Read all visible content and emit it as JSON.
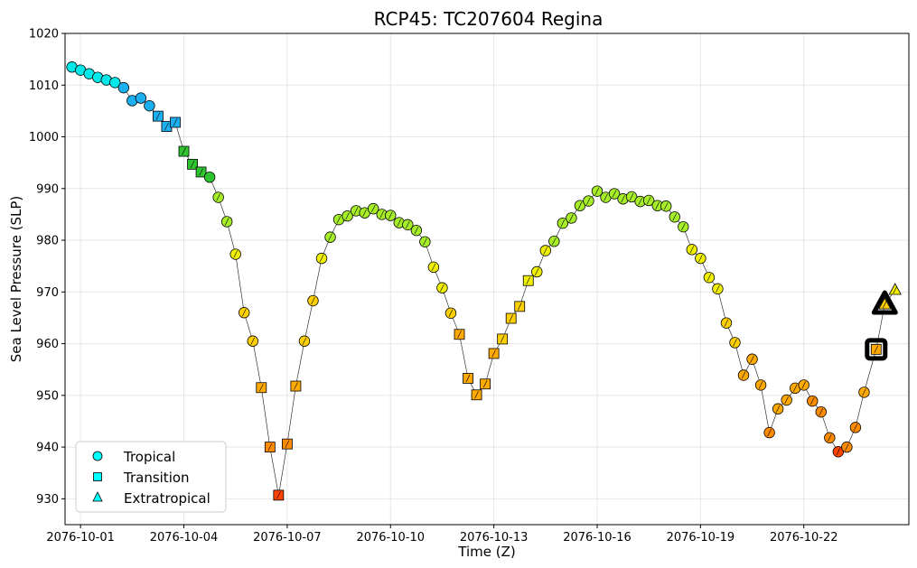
{
  "chart_data": {
    "type": "scatter",
    "title": "RCP45: TC207604 Regina",
    "xlabel": "Time (Z)",
    "ylabel": "Sea Level Pressure (SLP)",
    "x_unit": "days",
    "x_ticks": [
      {
        "x": 1,
        "label": "2076-10-01"
      },
      {
        "x": 4,
        "label": "2076-10-04"
      },
      {
        "x": 7,
        "label": "2076-10-07"
      },
      {
        "x": 10,
        "label": "2076-10-10"
      },
      {
        "x": 13,
        "label": "2076-10-13"
      },
      {
        "x": 16,
        "label": "2076-10-16"
      },
      {
        "x": 19,
        "label": "2076-10-19"
      },
      {
        "x": 22,
        "label": "2076-10-22"
      }
    ],
    "xlim": [
      0.55,
      25.05
    ],
    "ylim": [
      925,
      1020
    ],
    "y_ticks": [
      930,
      940,
      950,
      960,
      970,
      980,
      990,
      1000,
      1010,
      1020
    ],
    "grid": true,
    "legend": {
      "position": "bottom-left",
      "entries": [
        {
          "label": "Tropical",
          "marker": "circle",
          "color": "#00ffff"
        },
        {
          "label": "Transition",
          "marker": "square",
          "color": "#00ffff"
        },
        {
          "label": "Extratropical",
          "marker": "triangle",
          "color": "#00ffff"
        }
      ]
    },
    "series": [
      {
        "points": [
          {
            "x": 0.75,
            "y": 1013.5,
            "m": "o",
            "c": "#00e8e8"
          },
          {
            "x": 1.0,
            "y": 1012.9,
            "m": "o",
            "c": "#00e8e8"
          },
          {
            "x": 1.25,
            "y": 1012.2,
            "m": "o",
            "c": "#00e8e8"
          },
          {
            "x": 1.5,
            "y": 1011.5,
            "m": "o",
            "c": "#00e8e8"
          },
          {
            "x": 1.75,
            "y": 1011.0,
            "m": "o",
            "c": "#00e8e8"
          },
          {
            "x": 2.0,
            "y": 1010.5,
            "m": "o",
            "c": "#00e8e8"
          },
          {
            "x": 2.25,
            "y": 1009.5,
            "m": "o",
            "c": "#1cb0f0"
          },
          {
            "x": 2.5,
            "y": 1007.0,
            "m": "o",
            "c": "#1cb0f0"
          },
          {
            "x": 2.75,
            "y": 1007.5,
            "m": "o",
            "c": "#1cb0f0"
          },
          {
            "x": 3.0,
            "y": 1006.0,
            "m": "o",
            "c": "#1cb0f0"
          },
          {
            "x": 3.25,
            "y": 1004.0,
            "m": "s",
            "c": "#1cb0f0"
          },
          {
            "x": 3.5,
            "y": 1002.0,
            "m": "s",
            "c": "#1cb0f0"
          },
          {
            "x": 3.75,
            "y": 1002.8,
            "m": "s",
            "c": "#1cb0f0"
          },
          {
            "x": 4.0,
            "y": 997.2,
            "m": "s",
            "c": "#2ec42e"
          },
          {
            "x": 4.25,
            "y": 994.7,
            "m": "s",
            "c": "#2ec42e"
          },
          {
            "x": 4.5,
            "y": 993.2,
            "m": "s",
            "c": "#2ec42e"
          },
          {
            "x": 4.75,
            "y": 992.2,
            "m": "o",
            "c": "#2ec42e"
          },
          {
            "x": 5.0,
            "y": 988.3,
            "m": "o",
            "c": "#a6ee28"
          },
          {
            "x": 5.25,
            "y": 983.6,
            "m": "o",
            "c": "#a6ee28"
          },
          {
            "x": 5.5,
            "y": 977.3,
            "m": "o",
            "c": "#f0f000"
          },
          {
            "x": 5.75,
            "y": 966.0,
            "m": "o",
            "c": "#ffd000"
          },
          {
            "x": 6.0,
            "y": 960.5,
            "m": "o",
            "c": "#ffd000"
          },
          {
            "x": 6.25,
            "y": 951.5,
            "m": "s",
            "c": "#ffaa00"
          },
          {
            "x": 6.5,
            "y": 940.0,
            "m": "s",
            "c": "#ff8c00"
          },
          {
            "x": 6.75,
            "y": 930.7,
            "m": "s",
            "c": "#ff4500"
          },
          {
            "x": 7.0,
            "y": 940.6,
            "m": "s",
            "c": "#ff8c00"
          },
          {
            "x": 7.25,
            "y": 951.8,
            "m": "s",
            "c": "#ffaa00"
          },
          {
            "x": 7.5,
            "y": 960.5,
            "m": "o",
            "c": "#ffd000"
          },
          {
            "x": 7.75,
            "y": 968.3,
            "m": "o",
            "c": "#ffd000"
          },
          {
            "x": 8.0,
            "y": 976.5,
            "m": "o",
            "c": "#f0f000"
          },
          {
            "x": 8.25,
            "y": 980.6,
            "m": "o",
            "c": "#a6ee28"
          },
          {
            "x": 8.5,
            "y": 984.0,
            "m": "o",
            "c": "#a6ee28"
          },
          {
            "x": 8.75,
            "y": 984.7,
            "m": "o",
            "c": "#a6ee28"
          },
          {
            "x": 9.0,
            "y": 985.7,
            "m": "o",
            "c": "#a6ee28"
          },
          {
            "x": 9.25,
            "y": 985.3,
            "m": "o",
            "c": "#a6ee28"
          },
          {
            "x": 9.5,
            "y": 986.1,
            "m": "o",
            "c": "#a6ee28"
          },
          {
            "x": 9.75,
            "y": 985.0,
            "m": "o",
            "c": "#a6ee28"
          },
          {
            "x": 10.0,
            "y": 984.8,
            "m": "o",
            "c": "#a6ee28"
          },
          {
            "x": 10.25,
            "y": 983.4,
            "m": "o",
            "c": "#a6ee28"
          },
          {
            "x": 10.5,
            "y": 983.0,
            "m": "o",
            "c": "#a6ee28"
          },
          {
            "x": 10.75,
            "y": 981.9,
            "m": "o",
            "c": "#a6ee28"
          },
          {
            "x": 11.0,
            "y": 979.7,
            "m": "o",
            "c": "#a6ee28"
          },
          {
            "x": 11.25,
            "y": 974.8,
            "m": "o",
            "c": "#f0f000"
          },
          {
            "x": 11.5,
            "y": 970.8,
            "m": "o",
            "c": "#f0f000"
          },
          {
            "x": 11.75,
            "y": 965.9,
            "m": "o",
            "c": "#ffd000"
          },
          {
            "x": 12.0,
            "y": 961.8,
            "m": "s",
            "c": "#ffaa00"
          },
          {
            "x": 12.25,
            "y": 953.3,
            "m": "s",
            "c": "#ffaa00"
          },
          {
            "x": 12.5,
            "y": 950.1,
            "m": "s",
            "c": "#ffaa00"
          },
          {
            "x": 12.75,
            "y": 952.2,
            "m": "s",
            "c": "#ffaa00"
          },
          {
            "x": 13.0,
            "y": 958.1,
            "m": "s",
            "c": "#ffaa00"
          },
          {
            "x": 13.25,
            "y": 960.9,
            "m": "s",
            "c": "#ffd000"
          },
          {
            "x": 13.5,
            "y": 964.9,
            "m": "s",
            "c": "#ffd000"
          },
          {
            "x": 13.75,
            "y": 967.2,
            "m": "s",
            "c": "#ffd000"
          },
          {
            "x": 14.0,
            "y": 972.2,
            "m": "s",
            "c": "#f0f000"
          },
          {
            "x": 14.25,
            "y": 973.9,
            "m": "o",
            "c": "#f0f000"
          },
          {
            "x": 14.5,
            "y": 978.0,
            "m": "o",
            "c": "#f0f000"
          },
          {
            "x": 14.75,
            "y": 979.8,
            "m": "o",
            "c": "#a6ee28"
          },
          {
            "x": 15.0,
            "y": 983.3,
            "m": "o",
            "c": "#a6ee28"
          },
          {
            "x": 15.25,
            "y": 984.3,
            "m": "o",
            "c": "#a6ee28"
          },
          {
            "x": 15.5,
            "y": 986.7,
            "m": "o",
            "c": "#a6ee28"
          },
          {
            "x": 15.75,
            "y": 987.6,
            "m": "o",
            "c": "#a6ee28"
          },
          {
            "x": 16.0,
            "y": 989.5,
            "m": "o",
            "c": "#a6ee28"
          },
          {
            "x": 16.25,
            "y": 988.3,
            "m": "o",
            "c": "#a6ee28"
          },
          {
            "x": 16.5,
            "y": 989.0,
            "m": "o",
            "c": "#a6ee28"
          },
          {
            "x": 16.75,
            "y": 988.0,
            "m": "o",
            "c": "#a6ee28"
          },
          {
            "x": 17.0,
            "y": 988.4,
            "m": "o",
            "c": "#a6ee28"
          },
          {
            "x": 17.25,
            "y": 987.5,
            "m": "o",
            "c": "#a6ee28"
          },
          {
            "x": 17.5,
            "y": 987.7,
            "m": "o",
            "c": "#a6ee28"
          },
          {
            "x": 17.75,
            "y": 986.7,
            "m": "o",
            "c": "#a6ee28"
          },
          {
            "x": 18.0,
            "y": 986.6,
            "m": "o",
            "c": "#a6ee28"
          },
          {
            "x": 18.25,
            "y": 984.5,
            "m": "o",
            "c": "#a6ee28"
          },
          {
            "x": 18.5,
            "y": 982.6,
            "m": "o",
            "c": "#a6ee28"
          },
          {
            "x": 18.75,
            "y": 978.2,
            "m": "o",
            "c": "#f0f000"
          },
          {
            "x": 19.0,
            "y": 976.5,
            "m": "o",
            "c": "#f0f000"
          },
          {
            "x": 19.25,
            "y": 972.8,
            "m": "o",
            "c": "#f0f000"
          },
          {
            "x": 19.5,
            "y": 970.6,
            "m": "o",
            "c": "#f0f000"
          },
          {
            "x": 19.75,
            "y": 964.0,
            "m": "o",
            "c": "#ffd000"
          },
          {
            "x": 20.0,
            "y": 960.2,
            "m": "o",
            "c": "#ffd000"
          },
          {
            "x": 20.25,
            "y": 953.9,
            "m": "o",
            "c": "#ffaa00"
          },
          {
            "x": 20.5,
            "y": 957.0,
            "m": "o",
            "c": "#ffaa00"
          },
          {
            "x": 20.75,
            "y": 952.0,
            "m": "o",
            "c": "#ffaa00"
          },
          {
            "x": 21.0,
            "y": 942.8,
            "m": "o",
            "c": "#ff8c00"
          },
          {
            "x": 21.25,
            "y": 947.4,
            "m": "o",
            "c": "#ffaa00"
          },
          {
            "x": 21.5,
            "y": 949.1,
            "m": "o",
            "c": "#ffaa00"
          },
          {
            "x": 21.75,
            "y": 951.4,
            "m": "o",
            "c": "#ffaa00"
          },
          {
            "x": 22.0,
            "y": 952.0,
            "m": "o",
            "c": "#ffaa00"
          },
          {
            "x": 22.25,
            "y": 948.9,
            "m": "o",
            "c": "#ff8c00"
          },
          {
            "x": 22.5,
            "y": 946.8,
            "m": "o",
            "c": "#ff8c00"
          },
          {
            "x": 22.75,
            "y": 941.8,
            "m": "o",
            "c": "#ff8c00"
          },
          {
            "x": 23.0,
            "y": 939.1,
            "m": "o",
            "c": "#ff4500"
          },
          {
            "x": 23.25,
            "y": 940.0,
            "m": "o",
            "c": "#ff8c00"
          },
          {
            "x": 23.5,
            "y": 943.8,
            "m": "o",
            "c": "#ff8c00"
          },
          {
            "x": 23.75,
            "y": 950.6,
            "m": "o",
            "c": "#ffaa00"
          },
          {
            "x": 24.1,
            "y": 958.9,
            "m": "s",
            "c": "#ffaa00",
            "highlight": true
          },
          {
            "x": 24.35,
            "y": 967.6,
            "m": "^",
            "c": "#ffd000",
            "highlight": true
          },
          {
            "x": 24.65,
            "y": 970.4,
            "m": "^",
            "c": "#f0f000"
          }
        ]
      }
    ]
  }
}
